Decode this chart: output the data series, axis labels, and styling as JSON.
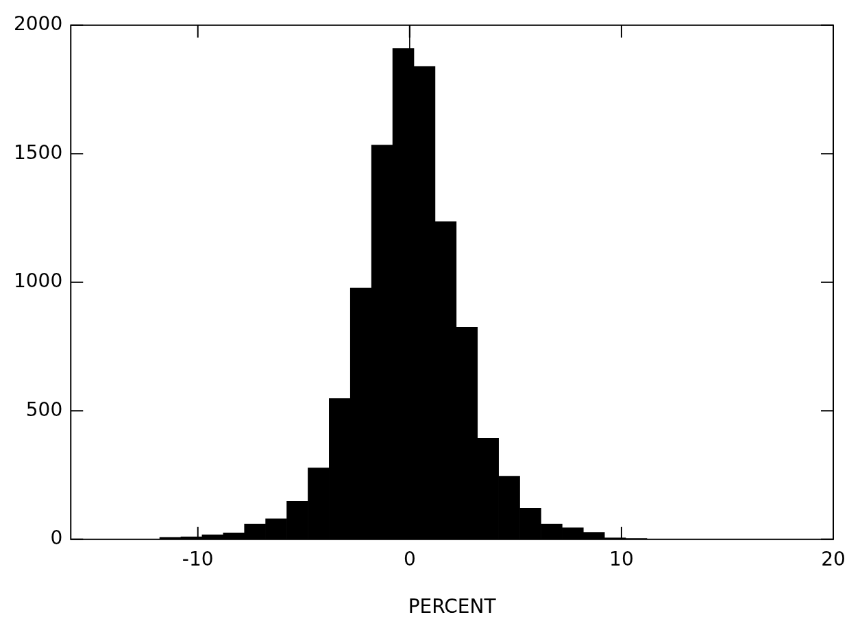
{
  "chart_data": {
    "type": "histogram",
    "xlabel": "PERCENT",
    "bins": [
      -11.8,
      -10.8,
      -9.8,
      -8.8,
      -7.8,
      -6.8,
      -5.8,
      -4.8,
      -3.8,
      -2.8,
      -1.8,
      -0.8,
      0.2,
      1.2,
      2.2,
      3.2,
      4.2,
      5.2,
      6.2,
      7.2,
      8.2,
      9.2,
      10.2,
      11.2
    ],
    "values": [
      8,
      10,
      18,
      25,
      60,
      80,
      148,
      278,
      548,
      978,
      1534,
      1910,
      1840,
      1236,
      825,
      393,
      246,
      121,
      60,
      45,
      27,
      6,
      3
    ],
    "color": "#000000",
    "xlim": [
      -16,
      20
    ],
    "xticks": [
      -10,
      0,
      10,
      20
    ],
    "ylim": [
      0,
      2000
    ],
    "yticks": [
      0,
      500,
      1000,
      1500,
      2000
    ],
    "ref_lines": [
      {
        "axis": "x",
        "value": 0
      }
    ],
    "grid": false,
    "legend": false
  }
}
